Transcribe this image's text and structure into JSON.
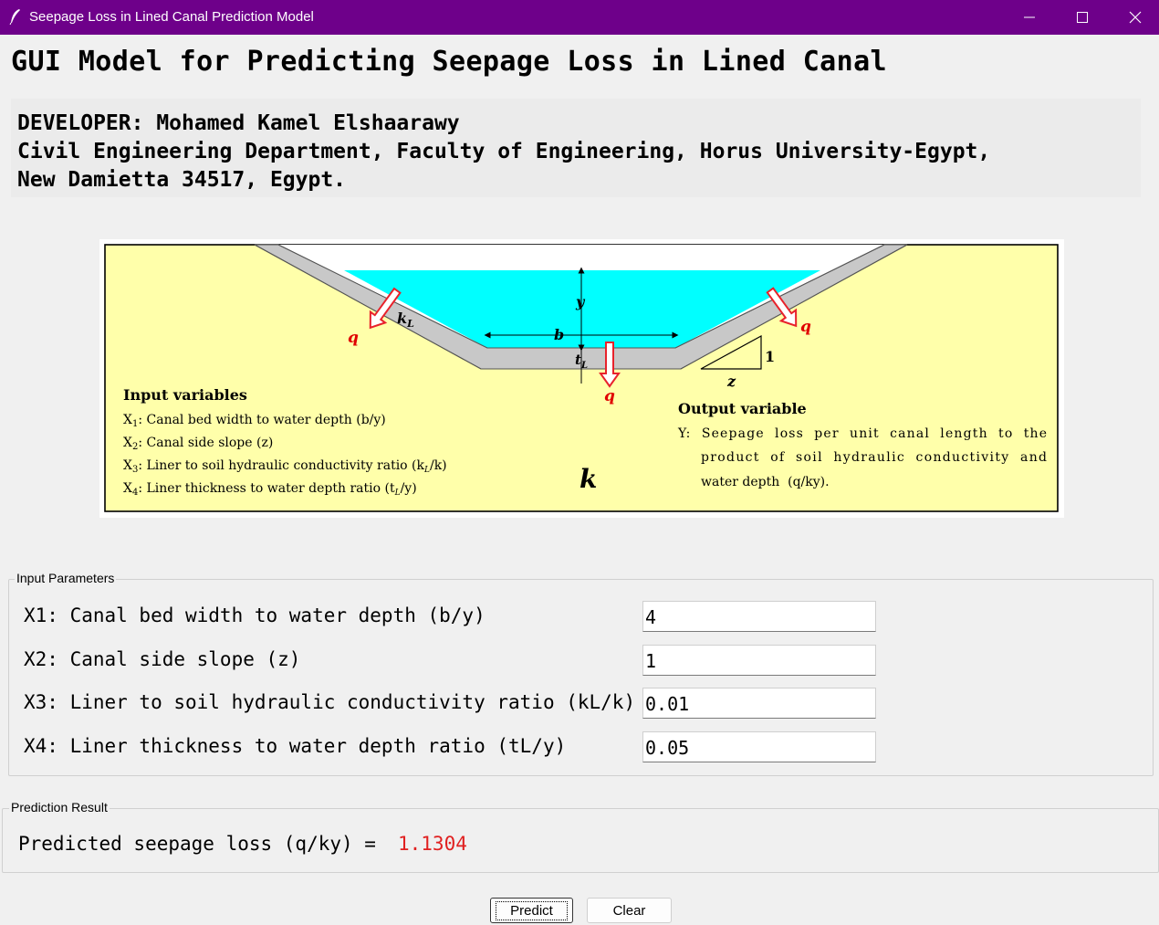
{
  "window": {
    "title": "Seepage Loss in Lined Canal Prediction Model",
    "controls": [
      "minimize",
      "maximize",
      "close"
    ]
  },
  "header": {
    "title": "GUI Model for Predicting Seepage Loss in Lined Canal"
  },
  "developer": {
    "line1": "DEVELOPER: Mohamed Kamel Elshaarawy",
    "line2": "Civil Engineering Department, Faculty of Engineering, Horus University-Egypt,",
    "line3": "New Damietta 34517, Egypt."
  },
  "diagram": {
    "labels": {
      "y": "y",
      "b": "b",
      "tL_t": "t",
      "tL_sub": "L",
      "kL_k": "k",
      "kL_sub": "L",
      "q": "q",
      "one": "1",
      "z": "z",
      "k": "k"
    },
    "input_title": "Input variables",
    "inputs": [
      {
        "id": "X",
        "sub": "1",
        "text": ": Canal bed width to water depth (b/y)"
      },
      {
        "id": "X",
        "sub": "2",
        "text": ": Canal side slope (z)"
      },
      {
        "id": "X",
        "sub": "3",
        "text": ": Liner to soil hydraulic conductivity ratio (k",
        "sub2": "L",
        "tail": "/k)"
      },
      {
        "id": "X",
        "sub": "4",
        "text": ": Liner thickness to water depth ratio (t",
        "sub2": "L",
        "tail": "/y)"
      }
    ],
    "output_title": "Output variable",
    "output_lines": [
      "Y:  Seepage  loss  per  unit  canal  length  to  the",
      "product  of  soil  hydraulic  conductivity  and",
      "water depth  (q/ky)."
    ],
    "colors": {
      "soil": "#ffffaa",
      "water": "#00ffff",
      "liner": "#c8c8c8",
      "arrow": "#e8222b",
      "q": "#e00000"
    }
  },
  "input_parameters": {
    "group_label": "Input Parameters",
    "fields": [
      {
        "label": "X1: Canal bed width to water depth (b/y)",
        "value": "4"
      },
      {
        "label": "X2: Canal side slope (z)",
        "value": "1"
      },
      {
        "label": "X3: Liner to soil hydraulic conductivity ratio (kL/k)",
        "value": "0.01"
      },
      {
        "label": "X4: Liner thickness to water depth ratio (tL/y)",
        "value": "0.05"
      }
    ]
  },
  "prediction": {
    "group_label": "Prediction Result",
    "text": "Predicted seepage loss (q/ky) =",
    "value": "1.1304",
    "value_color": "#e02020"
  },
  "buttons": {
    "predict": "Predict",
    "clear": "Clear"
  }
}
